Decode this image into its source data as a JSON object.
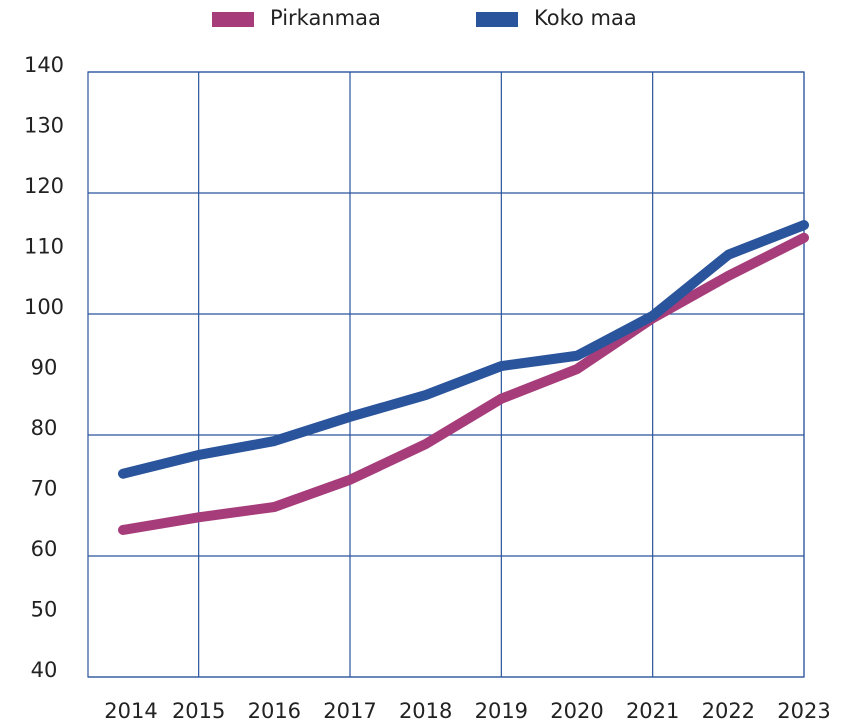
{
  "chart_data": {
    "type": "line",
    "categories": [
      "2014",
      "2015",
      "2016",
      "2017",
      "2018",
      "2019",
      "2020",
      "2021",
      "2022",
      "2023"
    ],
    "series": [
      {
        "name": "Pirkanmaa",
        "color": "#a63d7a",
        "values": [
          64.3,
          66.4,
          68.1,
          72.6,
          78.5,
          86,
          90.9,
          99.3,
          106.3,
          112.6
        ]
      },
      {
        "name": "Koko maa",
        "color": "#2a549c",
        "values": [
          73.6,
          76.7,
          79,
          83,
          86.6,
          91.4,
          93.1,
          99.7,
          109.8,
          114.7
        ]
      }
    ],
    "ylim": [
      40,
      140
    ],
    "yticks": [
      40,
      50,
      60,
      70,
      80,
      90,
      100,
      110,
      120,
      130,
      140
    ],
    "grid": true,
    "legend": "top"
  }
}
